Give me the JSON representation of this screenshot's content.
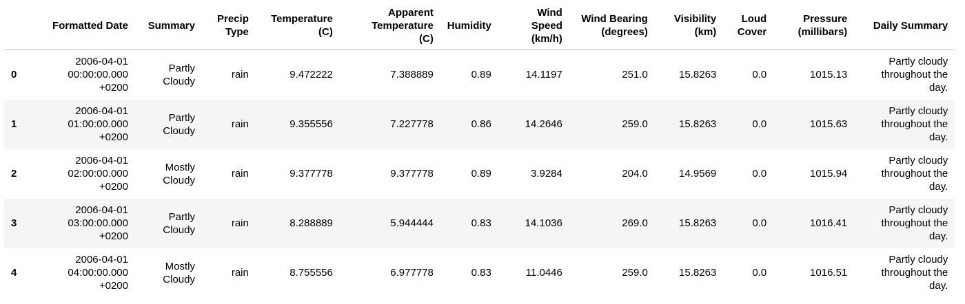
{
  "table": {
    "index_header": "",
    "columns": [
      "Formatted Date",
      "Summary",
      "Precip Type",
      "Temperature (C)",
      "Apparent Temperature (C)",
      "Humidity",
      "Wind Speed (km/h)",
      "Wind Bearing (degrees)",
      "Visibility (km)",
      "Loud Cover",
      "Pressure (millibars)",
      "Daily Summary"
    ],
    "rows": [
      {
        "index": "0",
        "cells": [
          "2006-04-01 00:00:00.000 +0200",
          "Partly Cloudy",
          "rain",
          "9.472222",
          "7.388889",
          "0.89",
          "14.1197",
          "251.0",
          "15.8263",
          "0.0",
          "1015.13",
          "Partly cloudy throughout the day."
        ]
      },
      {
        "index": "1",
        "cells": [
          "2006-04-01 01:00:00.000 +0200",
          "Partly Cloudy",
          "rain",
          "9.355556",
          "7.227778",
          "0.86",
          "14.2646",
          "259.0",
          "15.8263",
          "0.0",
          "1015.63",
          "Partly cloudy throughout the day."
        ]
      },
      {
        "index": "2",
        "cells": [
          "2006-04-01 02:00:00.000 +0200",
          "Mostly Cloudy",
          "rain",
          "9.377778",
          "9.377778",
          "0.89",
          "3.9284",
          "204.0",
          "14.9569",
          "0.0",
          "1015.94",
          "Partly cloudy throughout the day."
        ]
      },
      {
        "index": "3",
        "cells": [
          "2006-04-01 03:00:00.000 +0200",
          "Partly Cloudy",
          "rain",
          "8.288889",
          "5.944444",
          "0.83",
          "14.1036",
          "269.0",
          "15.8263",
          "0.0",
          "1016.41",
          "Partly cloudy throughout the day."
        ]
      },
      {
        "index": "4",
        "cells": [
          "2006-04-01 04:00:00.000 +0200",
          "Mostly Cloudy",
          "rain",
          "8.755556",
          "6.977778",
          "0.83",
          "11.0446",
          "259.0",
          "15.8263",
          "0.0",
          "1016.51",
          "Partly cloudy throughout the day."
        ]
      }
    ]
  },
  "colors": {
    "row_stripe": "#f5f5f5",
    "header_rule": "#bdbdbd",
    "text": "#000000"
  }
}
